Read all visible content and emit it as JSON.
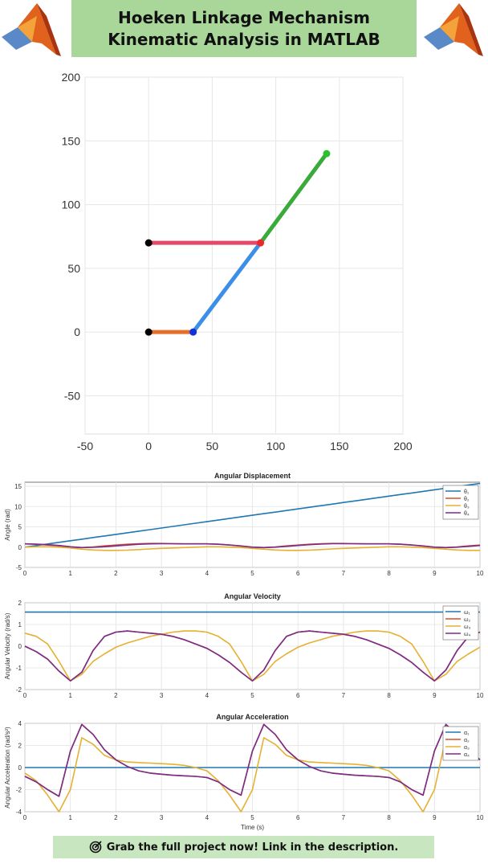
{
  "banner": {
    "line1": "Hoeken Linkage Mechanism",
    "line2": "Kinematic Analysis in MATLAB"
  },
  "footer": {
    "icon": "target-icon",
    "text": "Grab the full project now! Link in the description."
  },
  "colors": {
    "banner_bg": "#a9d79a",
    "footer_bg": "#c8e6bf",
    "s1": "#1f77b4",
    "s2": "#d9502a",
    "s3": "#e6b031",
    "s4": "#7a2c8a"
  },
  "chart_data": [
    {
      "type": "scatter",
      "title": "",
      "xlim": [
        -50,
        200
      ],
      "ylim": [
        -80,
        200
      ],
      "xticks": [
        -50,
        0,
        50,
        100,
        150,
        200
      ],
      "yticks": [
        -50,
        0,
        50,
        100,
        150,
        200
      ],
      "grid": true,
      "links": [
        {
          "from": [
            0,
            0
          ],
          "to": [
            35,
            0
          ],
          "color": "#e46e2a"
        },
        {
          "from": [
            35,
            0
          ],
          "to": [
            88,
            70
          ],
          "color": "#3c8fe8"
        },
        {
          "from": [
            0,
            70
          ],
          "to": [
            88,
            70
          ],
          "color": "#e34a68"
        },
        {
          "from": [
            88,
            70
          ],
          "to": [
            140,
            140
          ],
          "color": "#3aaa3a"
        }
      ],
      "joints": [
        {
          "x": 0,
          "y": 0,
          "color": "#000000"
        },
        {
          "x": 0,
          "y": 70,
          "color": "#000000"
        },
        {
          "x": 35,
          "y": 0,
          "color": "#1030e0"
        },
        {
          "x": 88,
          "y": 70,
          "color": "#e8282e"
        },
        {
          "x": 140,
          "y": 140,
          "color": "#2ec02e"
        }
      ]
    },
    {
      "type": "line",
      "title": "Angular Displacement",
      "xlabel": "",
      "ylabel": "Angle (rad)",
      "xlim": [
        0,
        10
      ],
      "ylim": [
        -5,
        16
      ],
      "xticks": [
        0,
        1,
        2,
        3,
        4,
        5,
        6,
        7,
        8,
        9,
        10
      ],
      "yticks": [
        -5,
        0,
        5,
        10,
        15
      ],
      "grid": true,
      "legend": "top-right",
      "x": [
        0,
        0.25,
        0.5,
        0.75,
        1,
        1.25,
        1.5,
        1.75,
        2,
        2.25,
        2.5,
        2.75,
        3,
        3.25,
        3.5,
        3.75,
        4,
        4.25,
        4.5,
        4.75,
        5,
        5.25,
        5.5,
        5.75,
        6,
        6.25,
        6.5,
        6.75,
        7,
        7.25,
        7.5,
        7.75,
        8,
        8.25,
        8.5,
        8.75,
        9,
        9.25,
        9.5,
        9.75,
        10
      ],
      "series": [
        {
          "name": "θ₁",
          "color": "#1f77b4",
          "values": [
            0,
            0.39,
            0.79,
            1.18,
            1.57,
            1.96,
            2.36,
            2.75,
            3.14,
            3.53,
            3.93,
            4.32,
            4.71,
            5.1,
            5.5,
            5.89,
            6.28,
            6.67,
            7.07,
            7.46,
            7.85,
            8.25,
            8.64,
            9.03,
            9.42,
            9.82,
            10.21,
            10.6,
            11.0,
            11.39,
            11.78,
            12.17,
            12.57,
            12.96,
            13.35,
            13.74,
            14.14,
            14.53,
            14.92,
            15.32,
            15.71
          ]
        },
        {
          "name": "θ₂",
          "color": "#d9502a",
          "values": [
            0.8,
            0.7,
            0.5,
            0.3,
            0.0,
            -0.1,
            0.05,
            0.3,
            0.5,
            0.7,
            0.85,
            0.9,
            0.9,
            0.85,
            0.8,
            0.8,
            0.8,
            0.75,
            0.55,
            0.3,
            0.0,
            -0.1,
            0.05,
            0.3,
            0.5,
            0.7,
            0.85,
            0.9,
            0.9,
            0.85,
            0.8,
            0.8,
            0.8,
            0.75,
            0.55,
            0.3,
            0.0,
            -0.1,
            0.05,
            0.3,
            0.5
          ]
        },
        {
          "name": "θ₃",
          "color": "#e6b031",
          "values": [
            0.0,
            0.1,
            0.1,
            0.0,
            -0.2,
            -0.5,
            -0.7,
            -0.8,
            -0.8,
            -0.75,
            -0.6,
            -0.45,
            -0.3,
            -0.2,
            -0.1,
            0.0,
            0.1,
            0.1,
            0.0,
            -0.1,
            -0.3,
            -0.5,
            -0.7,
            -0.8,
            -0.8,
            -0.75,
            -0.6,
            -0.45,
            -0.3,
            -0.2,
            -0.1,
            0.0,
            0.1,
            0.1,
            0.0,
            -0.1,
            -0.3,
            -0.5,
            -0.7,
            -0.8,
            -0.8
          ]
        },
        {
          "name": "θ₄",
          "color": "#7a2c8a",
          "values": [
            0.8,
            0.75,
            0.6,
            0.4,
            0.1,
            -0.1,
            -0.05,
            0.1,
            0.3,
            0.5,
            0.7,
            0.8,
            0.85,
            0.85,
            0.8,
            0.8,
            0.8,
            0.7,
            0.5,
            0.25,
            0.0,
            -0.1,
            0.0,
            0.2,
            0.4,
            0.6,
            0.75,
            0.85,
            0.85,
            0.85,
            0.8,
            0.8,
            0.8,
            0.7,
            0.5,
            0.25,
            0.0,
            -0.1,
            0.0,
            0.2,
            0.4
          ]
        }
      ]
    },
    {
      "type": "line",
      "title": "Angular Velocity",
      "xlabel": "",
      "ylabel": "Angular Velocity (rad/s)",
      "xlim": [
        0,
        10
      ],
      "ylim": [
        -2,
        2
      ],
      "xticks": [
        0,
        1,
        2,
        3,
        4,
        5,
        6,
        7,
        8,
        9,
        10
      ],
      "yticks": [
        -2,
        -1,
        0,
        1,
        2
      ],
      "grid": true,
      "legend": "top-right",
      "x": [
        0,
        0.25,
        0.5,
        0.75,
        1,
        1.25,
        1.5,
        1.75,
        2,
        2.25,
        2.5,
        2.75,
        3,
        3.25,
        3.5,
        3.75,
        4,
        4.25,
        4.5,
        4.75,
        5,
        5.25,
        5.5,
        5.75,
        6,
        6.25,
        6.5,
        6.75,
        7,
        7.25,
        7.5,
        7.75,
        8,
        8.25,
        8.5,
        8.75,
        9,
        9.25,
        9.5,
        9.75,
        10
      ],
      "series": [
        {
          "name": "ω₁",
          "color": "#1f77b4",
          "values": [
            1.57,
            1.57,
            1.57,
            1.57,
            1.57,
            1.57,
            1.57,
            1.57,
            1.57,
            1.57,
            1.57,
            1.57,
            1.57,
            1.57,
            1.57,
            1.57,
            1.57,
            1.57,
            1.57,
            1.57,
            1.57,
            1.57,
            1.57,
            1.57,
            1.57,
            1.57,
            1.57,
            1.57,
            1.57,
            1.57,
            1.57,
            1.57,
            1.57,
            1.57,
            1.57,
            1.57,
            1.57,
            1.57,
            1.57,
            1.57,
            1.57
          ]
        },
        {
          "name": "ω₂",
          "color": "#d9502a",
          "values": [
            0.0,
            -0.25,
            -0.6,
            -1.15,
            -1.6,
            -1.2,
            -0.2,
            0.45,
            0.65,
            0.7,
            0.65,
            0.6,
            0.55,
            0.45,
            0.3,
            0.1,
            -0.1,
            -0.4,
            -0.75,
            -1.2,
            -1.6,
            -1.1,
            -0.2,
            0.45,
            0.65,
            0.7,
            0.65,
            0.6,
            0.55,
            0.45,
            0.3,
            0.1,
            -0.1,
            -0.4,
            -0.75,
            -1.2,
            -1.6,
            -1.1,
            -0.2,
            0.45,
            0.65
          ]
        },
        {
          "name": "ω₃",
          "color": "#e6b031",
          "values": [
            0.6,
            0.45,
            0.1,
            -0.7,
            -1.6,
            -1.3,
            -0.7,
            -0.35,
            -0.05,
            0.15,
            0.3,
            0.45,
            0.55,
            0.65,
            0.7,
            0.7,
            0.65,
            0.45,
            0.1,
            -0.7,
            -1.6,
            -1.3,
            -0.7,
            -0.35,
            -0.05,
            0.15,
            0.3,
            0.45,
            0.55,
            0.65,
            0.7,
            0.7,
            0.65,
            0.45,
            0.1,
            -0.7,
            -1.6,
            -1.3,
            -0.7,
            -0.35,
            -0.05
          ]
        },
        {
          "name": "ω₄",
          "color": "#7a2c8a",
          "values": [
            0.0,
            -0.25,
            -0.6,
            -1.15,
            -1.6,
            -1.2,
            -0.2,
            0.45,
            0.65,
            0.7,
            0.65,
            0.6,
            0.55,
            0.45,
            0.3,
            0.1,
            -0.1,
            -0.4,
            -0.75,
            -1.2,
            -1.6,
            -1.1,
            -0.2,
            0.45,
            0.65,
            0.7,
            0.65,
            0.6,
            0.55,
            0.45,
            0.3,
            0.1,
            -0.1,
            -0.4,
            -0.75,
            -1.2,
            -1.6,
            -1.1,
            -0.2,
            0.45,
            0.65
          ]
        }
      ]
    },
    {
      "type": "line",
      "title": "Angular Acceleration",
      "xlabel": "Time (s)",
      "ylabel": "Angular Acceleration (rad/s²)",
      "xlim": [
        0,
        10
      ],
      "ylim": [
        -4,
        4
      ],
      "xticks": [
        0,
        1,
        2,
        3,
        4,
        5,
        6,
        7,
        8,
        9,
        10
      ],
      "yticks": [
        -4,
        -2,
        0,
        2,
        4
      ],
      "grid": true,
      "legend": "top-right",
      "x": [
        0,
        0.25,
        0.5,
        0.75,
        1,
        1.25,
        1.5,
        1.75,
        2,
        2.25,
        2.5,
        2.75,
        3,
        3.25,
        3.5,
        3.75,
        4,
        4.25,
        4.5,
        4.75,
        5,
        5.25,
        5.5,
        5.75,
        6,
        6.25,
        6.5,
        6.75,
        7,
        7.25,
        7.5,
        7.75,
        8,
        8.25,
        8.5,
        8.75,
        9,
        9.25,
        9.5,
        9.75,
        10
      ],
      "series": [
        {
          "name": "α₁",
          "color": "#1f77b4",
          "values": [
            0,
            0,
            0,
            0,
            0,
            0,
            0,
            0,
            0,
            0,
            0,
            0,
            0,
            0,
            0,
            0,
            0,
            0,
            0,
            0,
            0,
            0,
            0,
            0,
            0,
            0,
            0,
            0,
            0,
            0,
            0,
            0,
            0,
            0,
            0,
            0,
            0,
            0,
            0,
            0,
            0
          ]
        },
        {
          "name": "α₂",
          "color": "#d9502a",
          "values": [
            -0.8,
            -1.3,
            -2.0,
            -2.6,
            1.5,
            3.9,
            3.0,
            1.6,
            0.7,
            0.1,
            -0.3,
            -0.5,
            -0.6,
            -0.7,
            -0.75,
            -0.8,
            -0.9,
            -1.3,
            -2.0,
            -2.5,
            1.5,
            3.9,
            3.0,
            1.6,
            0.7,
            0.1,
            -0.3,
            -0.5,
            -0.6,
            -0.7,
            -0.75,
            -0.8,
            -0.9,
            -1.3,
            -2.0,
            -2.5,
            1.5,
            3.9,
            3.0,
            1.6,
            0.7
          ]
        },
        {
          "name": "α₃",
          "color": "#e6b031",
          "values": [
            -0.5,
            -1.2,
            -2.5,
            -4.0,
            -2.0,
            2.7,
            2.1,
            1.1,
            0.7,
            0.5,
            0.45,
            0.4,
            0.35,
            0.3,
            0.2,
            0.0,
            -0.3,
            -1.2,
            -2.5,
            -4.0,
            -2.0,
            2.7,
            2.1,
            1.1,
            0.7,
            0.5,
            0.45,
            0.4,
            0.35,
            0.3,
            0.2,
            0.0,
            -0.3,
            -1.2,
            -2.5,
            -4.0,
            -2.0,
            2.7,
            2.1,
            1.1,
            0.7
          ]
        },
        {
          "name": "α₄",
          "color": "#7a2c8a",
          "values": [
            -0.8,
            -1.3,
            -2.0,
            -2.6,
            1.5,
            3.9,
            3.0,
            1.6,
            0.7,
            0.1,
            -0.3,
            -0.5,
            -0.6,
            -0.7,
            -0.75,
            -0.8,
            -0.9,
            -1.3,
            -2.0,
            -2.5,
            1.5,
            3.9,
            3.0,
            1.6,
            0.7,
            0.1,
            -0.3,
            -0.5,
            -0.6,
            -0.7,
            -0.75,
            -0.8,
            -0.9,
            -1.3,
            -2.0,
            -2.5,
            1.5,
            3.9,
            3.0,
            1.6,
            0.7
          ]
        }
      ]
    }
  ]
}
